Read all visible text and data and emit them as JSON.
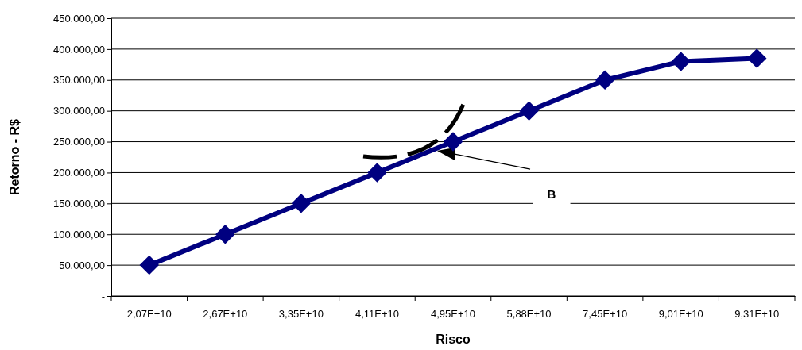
{
  "chart_data": {
    "type": "line",
    "xlabel": "Risco",
    "ylabel": "Retorno - R$",
    "categories": [
      "2,07E+10",
      "2,67E+10",
      "3,35E+10",
      "4,11E+10",
      "4,95E+10",
      "5,88E+10",
      "7,45E+10",
      "9,01E+10",
      "9,31E+10"
    ],
    "series": [
      {
        "color": "#000080",
        "values": [
          50000,
          100000,
          150000,
          200000,
          250000,
          300000,
          350000,
          380000,
          385000
        ]
      }
    ],
    "ylim": [
      0,
      450000
    ],
    "yticks": [
      {
        "value": 0,
        "label": "-"
      },
      {
        "value": 50000,
        "label": "50.000,00"
      },
      {
        "value": 100000,
        "label": "100.000,00"
      },
      {
        "value": 150000,
        "label": "150.000,00"
      },
      {
        "value": 200000,
        "label": "200.000,00"
      },
      {
        "value": 250000,
        "label": "250.000,00"
      },
      {
        "value": 300000,
        "label": "300.000,00"
      },
      {
        "value": 350000,
        "label": "350.000,00"
      },
      {
        "value": 400000,
        "label": "400.000,00"
      },
      {
        "value": 450000,
        "label": "450.000,00"
      }
    ],
    "grid": "y",
    "marker": "diamond",
    "line_style": "solid",
    "annotations": [
      "B"
    ]
  }
}
